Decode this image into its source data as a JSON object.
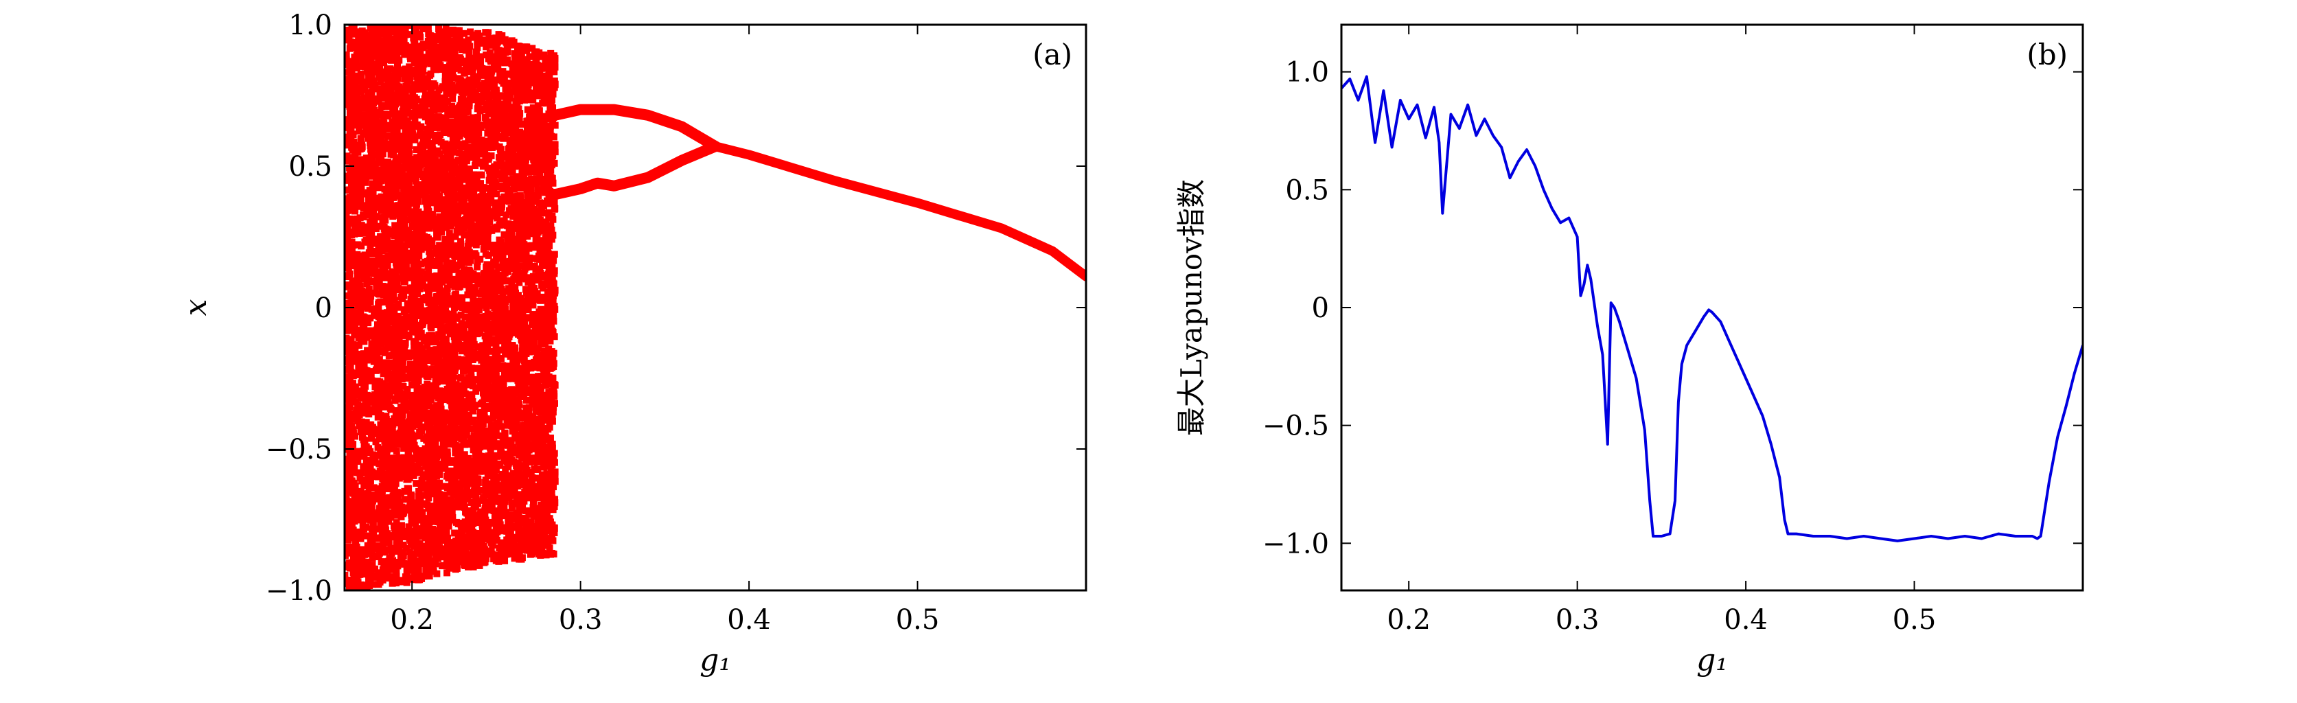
{
  "chart_data": [
    {
      "panel_label": "(a)",
      "type": "scatter",
      "xlabel": "g₁",
      "ylabel": "x",
      "xlim": [
        0.16,
        0.6
      ],
      "ylim": [
        -1.0,
        1.0
      ],
      "x_ticks": [
        0.2,
        0.3,
        0.4,
        0.5
      ],
      "x_tick_labels": [
        "0.2",
        "0.3",
        "0.4",
        "0.5"
      ],
      "y_ticks": [
        1.0,
        0.5,
        0,
        -0.5,
        -1.0
      ],
      "y_tick_labels": [
        "1.0",
        "0.5",
        "0",
        "−0.5",
        "−1.0"
      ],
      "color": "#ff0000",
      "series": [
        {
          "kind": "chaotic-band",
          "x_range": [
            0.16,
            0.285
          ],
          "envelope": {
            "x": [
              0.16,
              0.2,
              0.25,
              0.28,
              0.285
            ],
            "y_upper": [
              1.0,
              1.0,
              0.97,
              0.9,
              0.9
            ],
            "y_lower": [
              -1.0,
              -0.97,
              -0.9,
              -0.88,
              -0.88
            ]
          }
        },
        {
          "kind": "branches",
          "branch_upper": {
            "x": [
              0.285,
              0.3,
              0.31,
              0.32,
              0.34,
              0.36,
              0.38
            ],
            "y": [
              0.68,
              0.7,
              0.7,
              0.7,
              0.68,
              0.64,
              0.57
            ]
          },
          "branch_lower": {
            "x": [
              0.285,
              0.3,
              0.31,
              0.32,
              0.34,
              0.36,
              0.38
            ],
            "y": [
              0.4,
              0.42,
              0.44,
              0.43,
              0.46,
              0.52,
              0.57
            ]
          }
        },
        {
          "kind": "fixed-point",
          "x": [
            0.38,
            0.4,
            0.45,
            0.5,
            0.55,
            0.58,
            0.6
          ],
          "y": [
            0.57,
            0.54,
            0.45,
            0.37,
            0.28,
            0.2,
            0.11
          ]
        }
      ]
    },
    {
      "panel_label": "(b)",
      "type": "line",
      "xlabel": "g₁",
      "ylabel": "最大Lyapunov指数",
      "xlim": [
        0.16,
        0.6
      ],
      "ylim": [
        -1.2,
        1.2
      ],
      "x_ticks": [
        0.2,
        0.3,
        0.4,
        0.5
      ],
      "x_tick_labels": [
        "0.2",
        "0.3",
        "0.4",
        "0.5"
      ],
      "y_ticks": [
        1.0,
        0.5,
        0,
        -0.5,
        -1.0
      ],
      "y_tick_labels": [
        "1.0",
        "0.5",
        "0",
        "−0.5",
        "−1.0"
      ],
      "color": "#0000e0",
      "series": [
        {
          "x": [
            0.16,
            0.165,
            0.17,
            0.175,
            0.18,
            0.185,
            0.19,
            0.195,
            0.2,
            0.205,
            0.21,
            0.215,
            0.218,
            0.22,
            0.225,
            0.23,
            0.235,
            0.24,
            0.245,
            0.25,
            0.255,
            0.26,
            0.265,
            0.27,
            0.275,
            0.28,
            0.285,
            0.29,
            0.295,
            0.3,
            0.302,
            0.304,
            0.306,
            0.308,
            0.31,
            0.312,
            0.315,
            0.318,
            0.32,
            0.322,
            0.325,
            0.33,
            0.335,
            0.34,
            0.343,
            0.345,
            0.35,
            0.355,
            0.358,
            0.36,
            0.362,
            0.365,
            0.37,
            0.375,
            0.378,
            0.38,
            0.385,
            0.39,
            0.395,
            0.4,
            0.405,
            0.41,
            0.415,
            0.42,
            0.423,
            0.425,
            0.43,
            0.44,
            0.45,
            0.46,
            0.47,
            0.48,
            0.49,
            0.5,
            0.51,
            0.52,
            0.53,
            0.54,
            0.55,
            0.56,
            0.57,
            0.573,
            0.575,
            0.58,
            0.585,
            0.59,
            0.595,
            0.6
          ],
          "y": [
            0.93,
            0.97,
            0.88,
            0.98,
            0.7,
            0.92,
            0.68,
            0.88,
            0.8,
            0.86,
            0.72,
            0.85,
            0.7,
            0.4,
            0.82,
            0.76,
            0.86,
            0.73,
            0.8,
            0.73,
            0.68,
            0.55,
            0.62,
            0.67,
            0.6,
            0.5,
            0.42,
            0.36,
            0.38,
            0.3,
            0.05,
            0.1,
            0.18,
            0.12,
            0.02,
            -0.08,
            -0.2,
            -0.58,
            0.02,
            0.0,
            -0.06,
            -0.18,
            -0.3,
            -0.52,
            -0.82,
            -0.97,
            -0.97,
            -0.96,
            -0.82,
            -0.4,
            -0.24,
            -0.16,
            -0.1,
            -0.04,
            -0.01,
            -0.02,
            -0.06,
            -0.14,
            -0.22,
            -0.3,
            -0.38,
            -0.46,
            -0.58,
            -0.72,
            -0.9,
            -0.96,
            -0.96,
            -0.97,
            -0.97,
            -0.98,
            -0.97,
            -0.98,
            -0.99,
            -0.98,
            -0.97,
            -0.98,
            -0.97,
            -0.98,
            -0.96,
            -0.97,
            -0.97,
            -0.98,
            -0.97,
            -0.74,
            -0.55,
            -0.42,
            -0.28,
            -0.16
          ]
        }
      ]
    }
  ]
}
